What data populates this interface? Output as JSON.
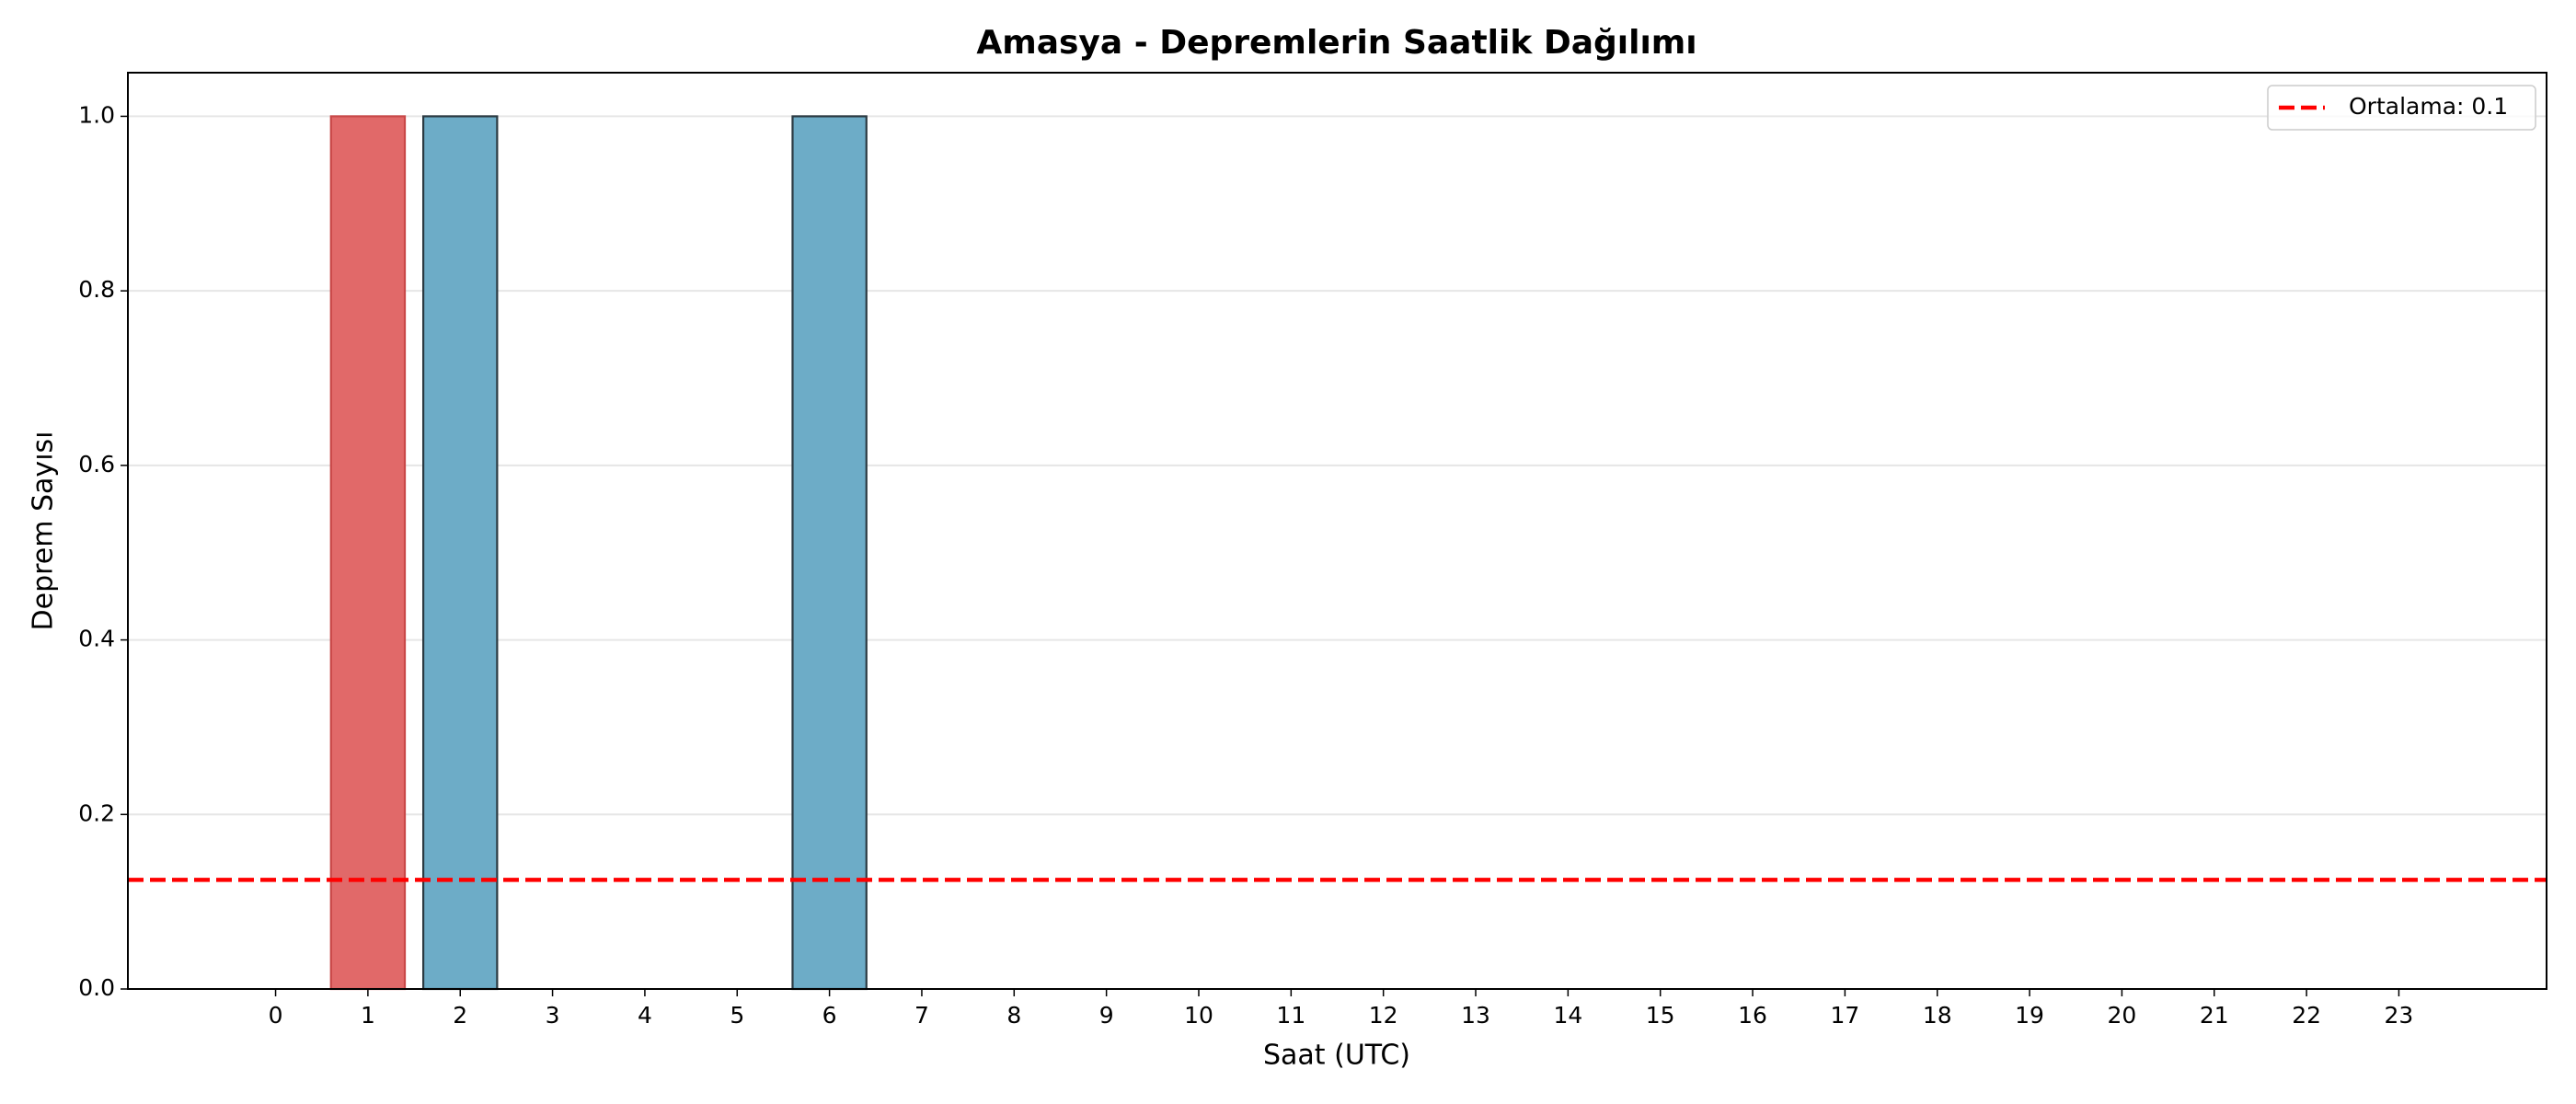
{
  "chart_data": {
    "type": "bar",
    "title": "Amasya - Depremlerin Saatlik Dağılımı",
    "xlabel": "Saat (UTC)",
    "ylabel": "Deprem Sayısı",
    "x": [
      0,
      1,
      2,
      3,
      4,
      5,
      6,
      7,
      8,
      9,
      10,
      11,
      12,
      13,
      14,
      15,
      16,
      17,
      18,
      19,
      20,
      21,
      22,
      23
    ],
    "values": [
      0,
      1,
      1,
      0,
      0,
      0,
      1,
      0,
      0,
      0,
      0,
      0,
      0,
      0,
      0,
      0,
      0,
      0,
      0,
      0,
      0,
      0,
      0,
      0
    ],
    "colors": [
      "#6aaac6",
      "#e06666",
      "#6aaac6",
      "#6aaac6",
      "#6aaac6",
      "#6aaac6",
      "#6aaac6",
      "#6aaac6",
      "#6aaac6",
      "#6aaac6",
      "#6aaac6",
      "#6aaac6",
      "#6aaac6",
      "#6aaac6",
      "#6aaac6",
      "#6aaac6",
      "#6aaac6",
      "#6aaac6",
      "#6aaac6",
      "#6aaac6",
      "#6aaac6",
      "#6aaac6",
      "#6aaac6",
      "#6aaac6"
    ],
    "edgecolors": [
      "#2b3a42",
      "#c94848",
      "#2b3a42",
      "#2b3a42",
      "#2b3a42",
      "#2b3a42",
      "#2b3a42",
      "#2b3a42",
      "#2b3a42",
      "#2b3a42",
      "#2b3a42",
      "#2b3a42",
      "#2b3a42",
      "#2b3a42",
      "#2b3a42",
      "#2b3a42",
      "#2b3a42",
      "#2b3a42",
      "#2b3a42",
      "#2b3a42",
      "#2b3a42",
      "#2b3a42",
      "#2b3a42",
      "#2b3a42"
    ],
    "mean_line": {
      "value": 0.125,
      "label": "Ortalama: 0.1",
      "color": "#ff0000"
    },
    "xlim": [
      -1.6,
      24.6
    ],
    "xticks": [
      0,
      1,
      2,
      3,
      4,
      5,
      6,
      7,
      8,
      9,
      10,
      11,
      12,
      13,
      14,
      15,
      16,
      17,
      18,
      19,
      20,
      21,
      22,
      23
    ],
    "ylim": [
      0,
      1.05
    ],
    "yticks": [
      {
        "value": 0,
        "label": "0.0"
      },
      0.2,
      0.4,
      0.6,
      0.8,
      {
        "value": 1,
        "label": "1.0"
      }
    ],
    "grid": true,
    "legend": "upper right"
  }
}
